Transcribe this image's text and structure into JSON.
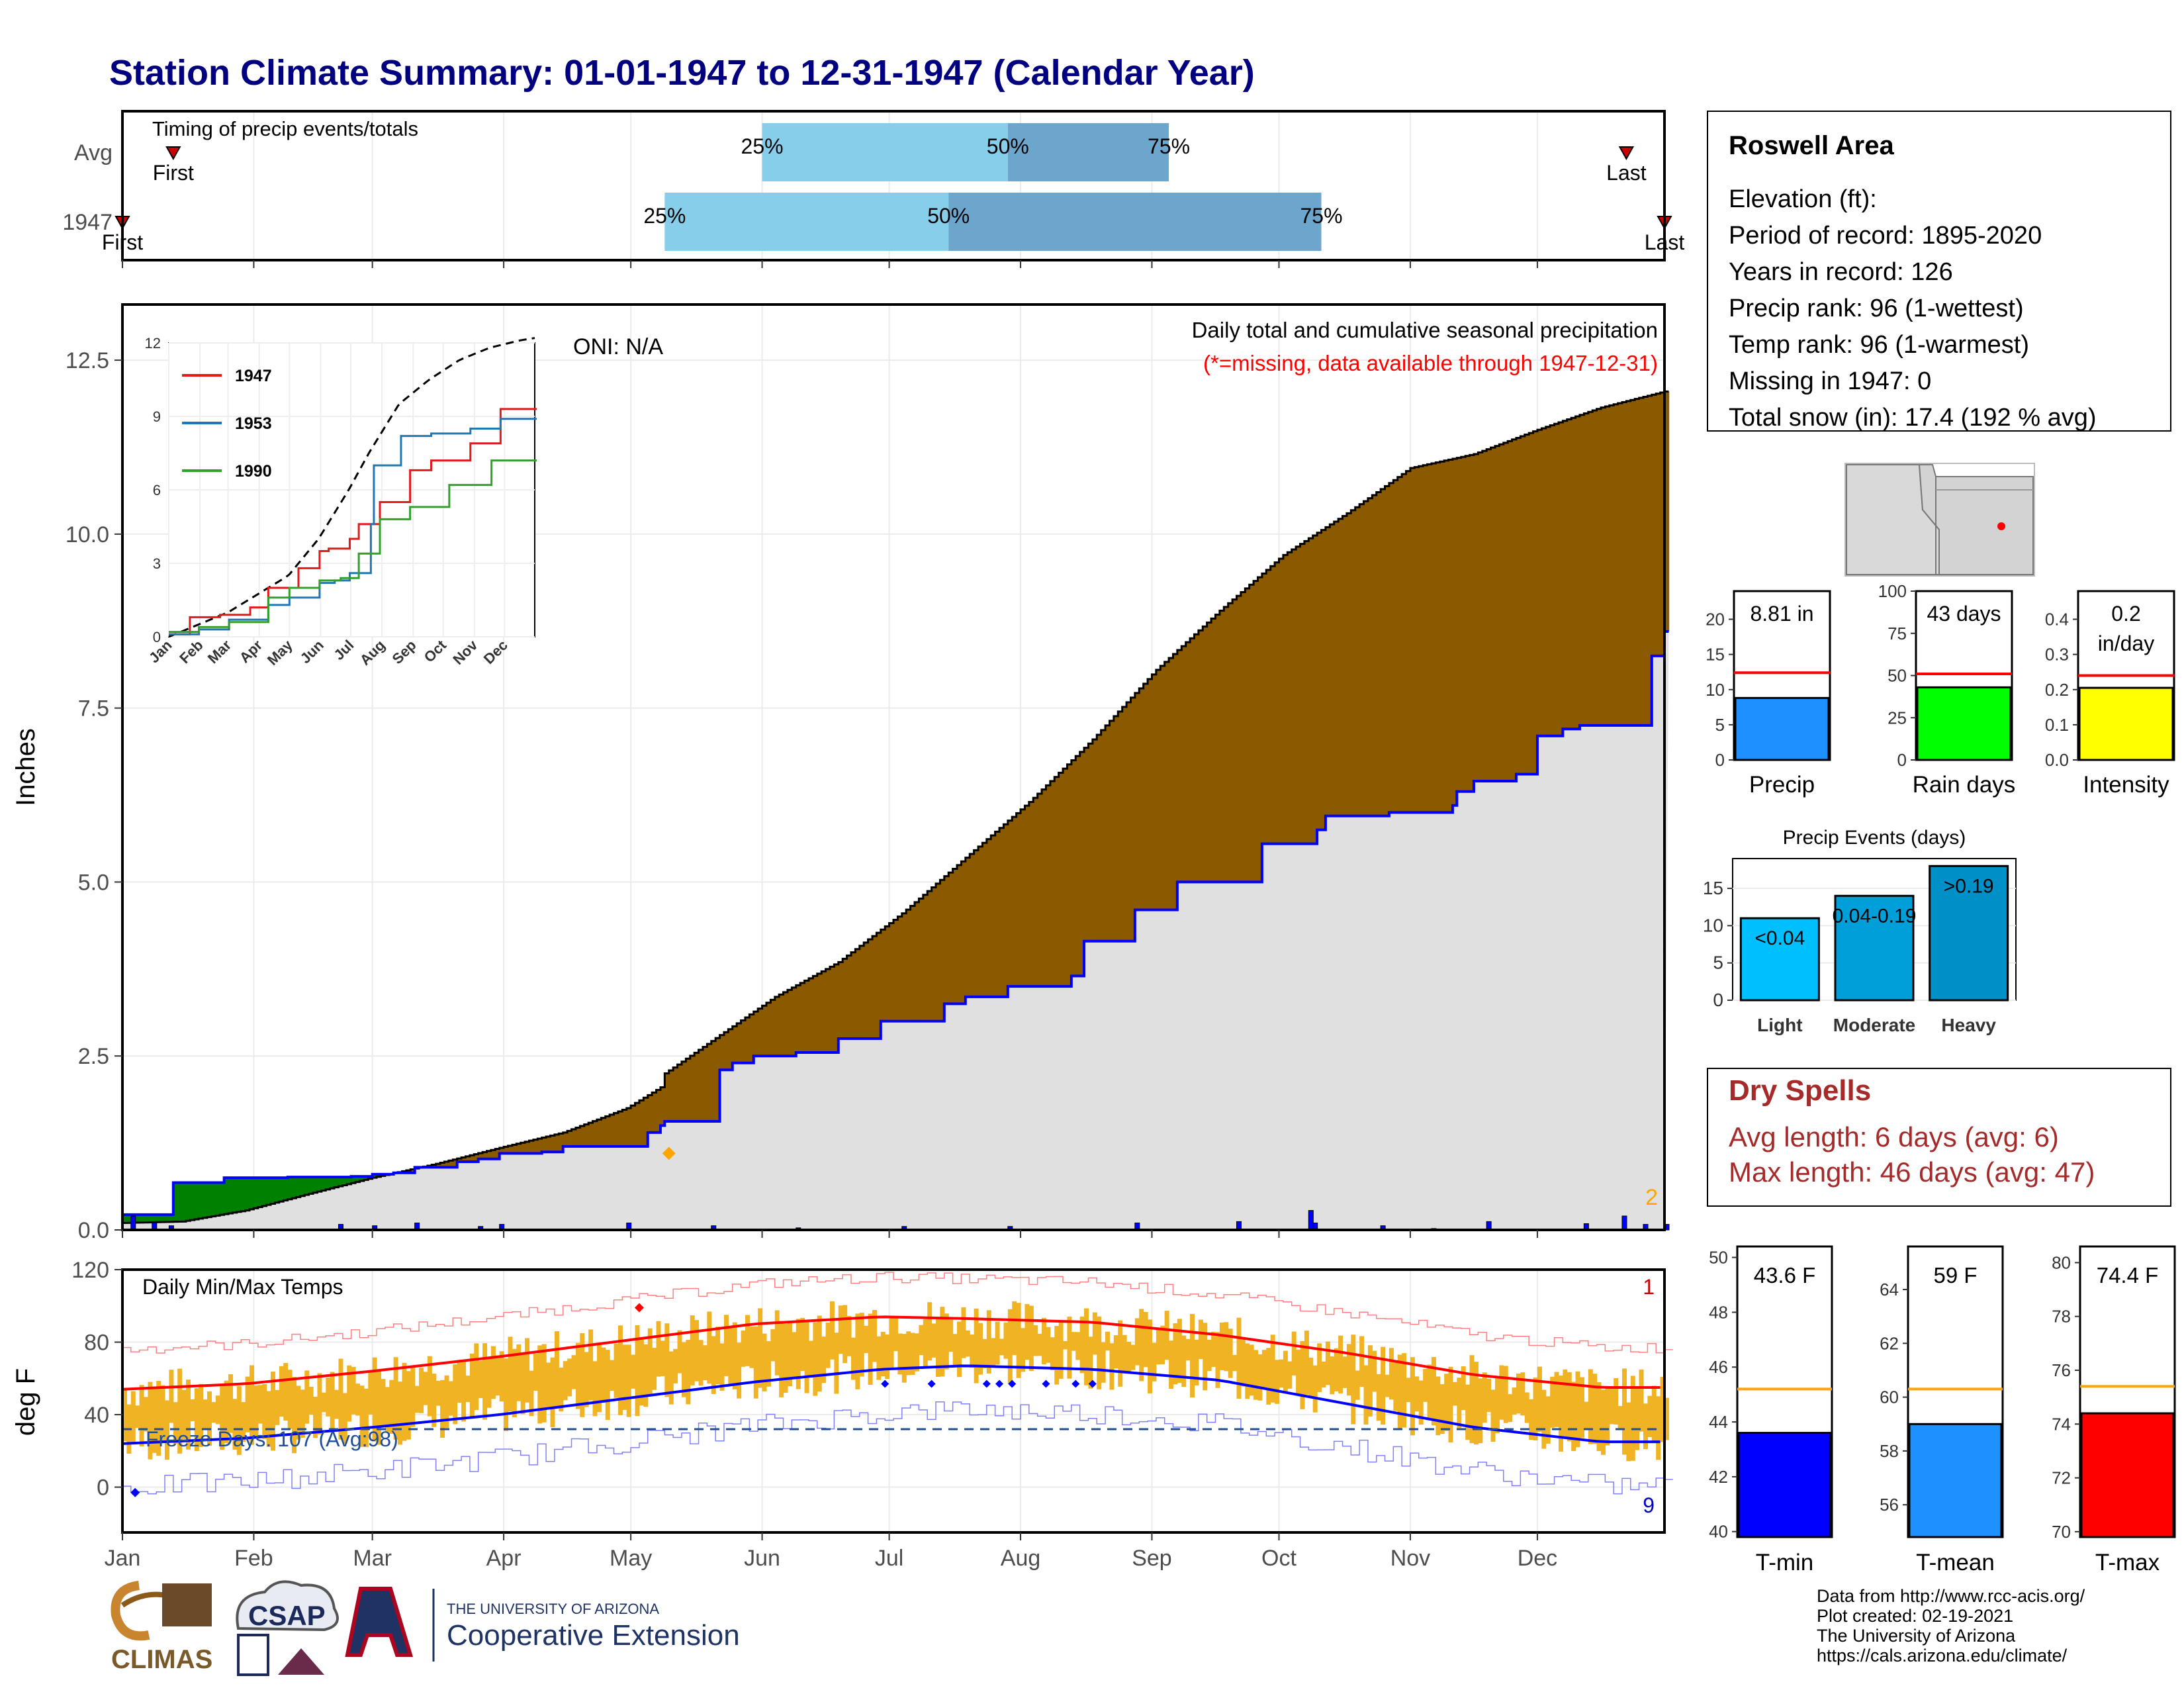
{
  "title": "Station Climate Summary: 01-01-1947 to 12-31-1947 (Calendar Year)",
  "months": [
    "Jan",
    "Feb",
    "Mar",
    "Apr",
    "May",
    "Jun",
    "Jul",
    "Aug",
    "Sep",
    "Oct",
    "Nov",
    "Dec"
  ],
  "timing": {
    "label": "Timing of precip events/totals",
    "rows": [
      {
        "name": "Avg",
        "first_doy": 13,
        "last_doy": 356,
        "p25_doy": 152,
        "p50_doy": 210,
        "p75_doy": 248,
        "first_label": "First",
        "last_label": "Last"
      },
      {
        "name": "1947",
        "first_doy": 1,
        "last_doy": 365,
        "p25_doy": 129,
        "p50_doy": 196,
        "p75_doy": 284,
        "first_label": "First",
        "last_label": "Last"
      }
    ],
    "pct_labels": [
      "25%",
      "50%",
      "75%"
    ]
  },
  "precip_panel": {
    "ylabel": "Inches",
    "yticks": [
      0.0,
      2.5,
      5.0,
      7.5,
      10.0,
      12.5
    ],
    "ytick_labels": [
      "0.0",
      "2.5",
      "5.0",
      "7.5",
      "10.0",
      "12.5"
    ],
    "title_line1": "Daily total and cumulative seasonal precipitation",
    "title_line2": "(*=missing, data available through 1947-12-31)",
    "oni": "ONI: N/A",
    "corner_count": "2"
  },
  "temp_panel": {
    "ylabel": "deg F",
    "yticks": [
      0,
      40,
      80,
      120
    ],
    "ytick_labels": [
      "0",
      "40",
      "80",
      "120"
    ],
    "title": "Daily Min/Max Temps",
    "freeze_text": "Freeze Days: 107 (Avg:98)",
    "count_top": "1",
    "count_bottom": "9"
  },
  "inset": {
    "yticks": [
      "0",
      "3",
      "6",
      "9",
      "12"
    ],
    "months": [
      "Jan",
      "Feb",
      "Mar",
      "Apr",
      "May",
      "Jun",
      "Jul",
      "Aug",
      "Sep",
      "Oct",
      "Nov",
      "Dec"
    ],
    "legend": [
      {
        "name": "1947",
        "color": "#e31a1c"
      },
      {
        "name": "1953",
        "color": "#1f78b4"
      },
      {
        "name": "1990",
        "color": "#33a02c"
      }
    ]
  },
  "station": {
    "name": "Roswell Area",
    "lines": [
      "Elevation (ft):",
      "Period of record: 1895-2020",
      "Years in record: 126",
      "Precip rank: 96 (1-wettest)",
      "Temp rank: 96 (1-warmest)",
      "Missing in 1947: 0",
      "Total snow (in): 17.4 (192 % avg)"
    ]
  },
  "small_bars": [
    {
      "label": "Precip",
      "value": 8.81,
      "value_label": "8.81 in",
      "avg": 12.4,
      "max": 24,
      "ticks": [
        0,
        5,
        10,
        15,
        20
      ],
      "color": "#1e90ff"
    },
    {
      "label": "Rain days",
      "value": 43,
      "value_label": "43 days",
      "avg": 51,
      "max": 100,
      "ticks": [
        0,
        25,
        50,
        75,
        100
      ],
      "color": "#00ff00"
    },
    {
      "label": "Intensity",
      "value": 0.205,
      "value_label": "0.2 in/day",
      "avg": 0.24,
      "max": 0.48,
      "ticks": [
        0.0,
        0.1,
        0.2,
        0.3,
        0.4
      ],
      "tick_labels": [
        "0.0",
        "0.1",
        "0.2",
        "0.3",
        "0.4"
      ],
      "color": "#ffff00"
    }
  ],
  "events": {
    "title": "Precip Events (days)",
    "categories": [
      "Light",
      "Moderate",
      "Heavy"
    ],
    "values": [
      11,
      14,
      18
    ],
    "value_labels": [
      "<0.04",
      "0.04-0.19",
      ">0.19"
    ],
    "ticks": [
      0,
      5,
      10,
      15
    ],
    "colors": [
      "#00bfff",
      "#009fd9",
      "#0090c8"
    ]
  },
  "dry_spells": {
    "title": "Dry Spells",
    "line1": "Avg length: 6 days (avg: 6)",
    "line2": "Max length: 46 days (avg: 47)"
  },
  "temp_bars": [
    {
      "label": "T-min",
      "value": 43.6,
      "value_label": "43.6 F",
      "avg": 45.2,
      "min": 39.8,
      "max": 50.4,
      "ticks": [
        40,
        42,
        44,
        46,
        48,
        50
      ],
      "color": "#0000ff"
    },
    {
      "label": "T-mean",
      "value": 59.0,
      "value_label": "59 F",
      "avg": 60.3,
      "min": 54.8,
      "max": 65.6,
      "ticks": [
        56,
        58,
        60,
        62,
        64
      ],
      "color": "#1e90ff"
    },
    {
      "label": "T-max",
      "value": 74.4,
      "value_label": "74.4 F",
      "avg": 75.4,
      "min": 69.8,
      "max": 80.6,
      "ticks": [
        70,
        72,
        74,
        76,
        78,
        80
      ],
      "color": "#ff0000"
    }
  ],
  "footer": {
    "lines": [
      "Data from http://www.rcc-acis.org/",
      "Plot created: 02-19-2021",
      "The University of Arizona",
      "https://cals.arizona.edu/climate/"
    ],
    "ua_small": "THE UNIVERSITY OF ARIZONA",
    "ua_big": "Cooperative Extension",
    "csap": "CSAP",
    "climas": "CLIMAS"
  },
  "chart_data": {
    "type": "line",
    "title": "Station Climate Summary: 01-01-1947 to 12-31-1947 (Calendar Year)",
    "x_unit": "day of year (1947)",
    "ylabel": "Inches",
    "ylim": [
      0,
      13.3
    ],
    "series": [
      {
        "name": "1947",
        "x": [
          1,
          15,
          30,
          45,
          60,
          75,
          90,
          105,
          120,
          128,
          129,
          155,
          170,
          185,
          200,
          215,
          230,
          245,
          260,
          275,
          290,
          305,
          320,
          335,
          350,
          365
        ],
        "values": [
          0.1,
          0.12,
          0.28,
          0.52,
          0.75,
          0.95,
          1.18,
          1.4,
          1.75,
          2.05,
          2.25,
          3.35,
          3.85,
          4.55,
          5.35,
          6.15,
          7.05,
          8.05,
          8.9,
          9.7,
          10.3,
          10.95,
          11.15,
          11.5,
          11.82,
          12.05
        ]
      },
      {
        "name": "",
        "x": [
          1,
          13,
          25,
          40,
          55,
          60,
          65,
          70,
          80,
          85,
          90,
          100,
          105,
          125,
          128,
          129,
          142,
          145,
          150,
          160,
          170,
          180,
          195,
          200,
          210,
          225,
          228,
          240,
          250,
          258,
          270,
          283,
          285,
          300,
          315,
          316,
          320,
          330,
          335,
          341,
          345,
          360,
          362,
          365
        ],
        "values": [
          0.22,
          0.68,
          0.75,
          0.76,
          0.77,
          0.8,
          0.82,
          0.9,
          0.98,
          1.02,
          1.1,
          1.12,
          1.2,
          1.4,
          1.5,
          1.56,
          2.3,
          2.4,
          2.5,
          2.55,
          2.75,
          3.0,
          3.25,
          3.35,
          3.5,
          3.65,
          4.15,
          4.6,
          5.0,
          5.0,
          5.55,
          5.75,
          5.95,
          6.0,
          6.1,
          6.3,
          6.45,
          6.55,
          7.1,
          7.2,
          7.25,
          7.25,
          8.25,
          8.6
        ]
      }
    ],
    "temp_series": [
      {
        "name": "avg_max",
        "x": [
          1,
          30,
          60,
          90,
          120,
          150,
          180,
          200,
          230,
          260,
          290,
          320,
          350,
          365
        ],
        "values": [
          54,
          57,
          64,
          72,
          81,
          90,
          94,
          93,
          91,
          84,
          74,
          62,
          55,
          55
        ]
      },
      {
        "name": "avg_min",
        "x": [
          1,
          30,
          60,
          90,
          120,
          150,
          180,
          200,
          230,
          260,
          290,
          320,
          350,
          365
        ],
        "values": [
          24,
          27,
          33,
          40,
          49,
          58,
          65,
          67,
          65,
          59,
          46,
          33,
          25,
          25
        ]
      }
    ]
  }
}
